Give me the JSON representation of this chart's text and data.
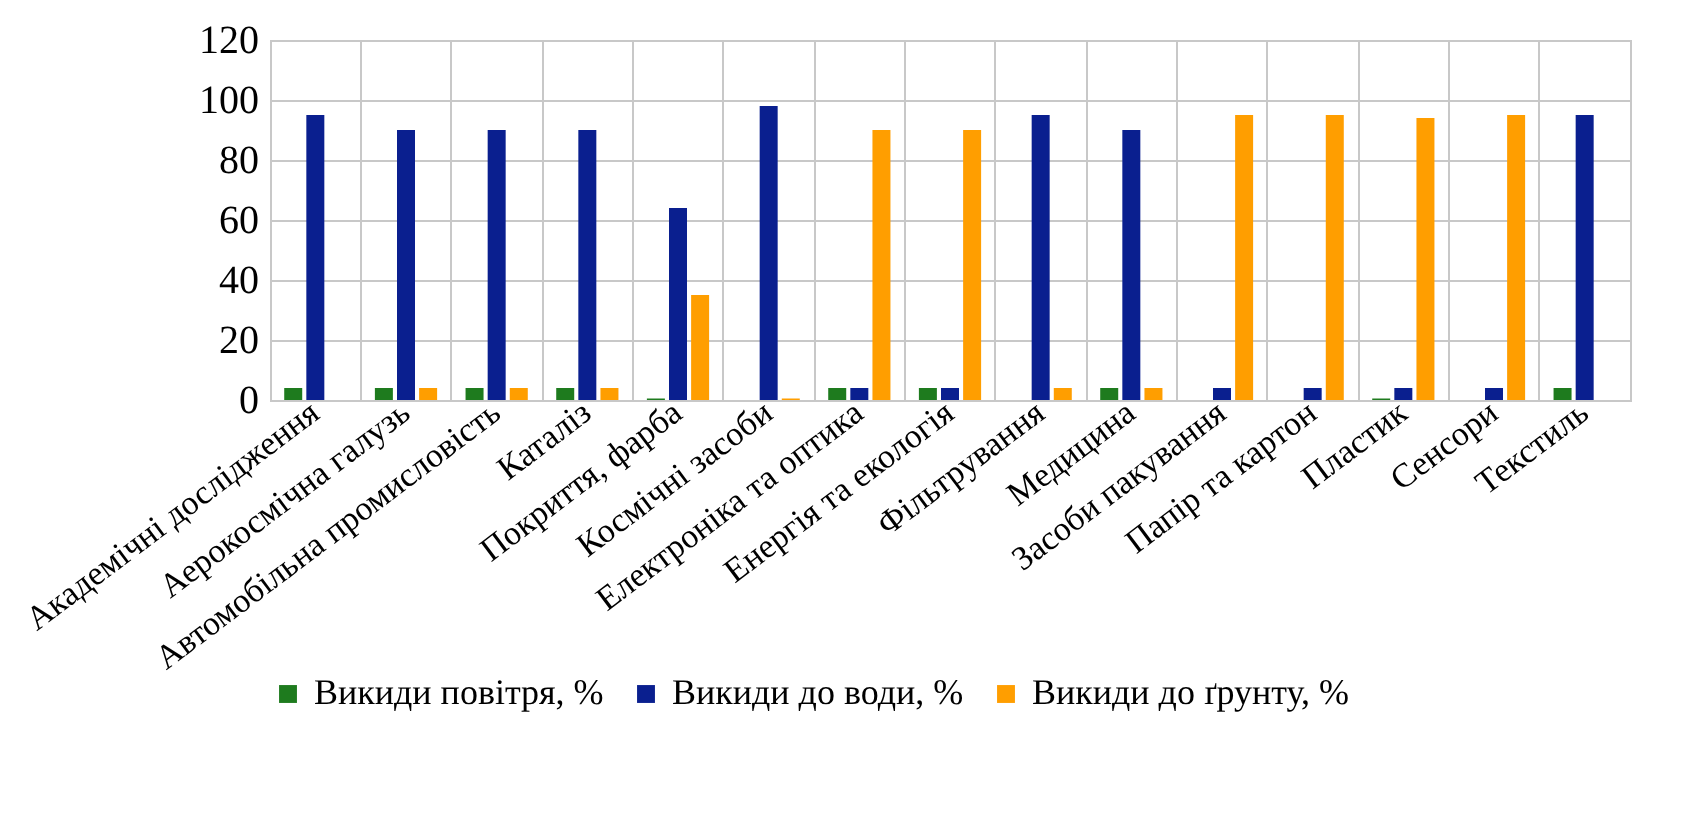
{
  "chart_data": {
    "type": "bar",
    "categories": [
      "Академічні дослідження",
      "Аерокосмічна галузь",
      "Автомобільна промисловість",
      "Каталіз",
      "Покриття, фарба",
      "Космічні засоби",
      "Електроніка та оптика",
      "Енергія та екологія",
      "Фільтрування",
      "Медицина",
      "Засоби пакування",
      "Папір та картон",
      "Пластик",
      "Сенсори",
      "Текстиль"
    ],
    "series": [
      {
        "name": "Викиди повітря, %",
        "color": "#1e7b1e",
        "values": [
          4,
          4,
          4,
          4,
          0.5,
          0,
          4,
          4,
          0,
          4,
          0,
          0,
          0.5,
          0,
          4
        ]
      },
      {
        "name": "Викиди до води, %",
        "color": "#0a1f8f",
        "values": [
          95,
          90,
          90,
          90,
          64,
          98,
          4,
          4,
          95,
          90,
          4,
          4,
          4,
          4,
          95
        ]
      },
      {
        "name": "Викиди до ґрунту, %",
        "color": "#ff9e00",
        "values": [
          0,
          4,
          4,
          4,
          35,
          0.5,
          90,
          90,
          4,
          4,
          95,
          95,
          94,
          95,
          0
        ]
      }
    ],
    "ylim": [
      0,
      120
    ],
    "yticks": [
      0,
      20,
      40,
      60,
      80,
      100,
      120
    ],
    "grid": true,
    "legend": "bottom"
  }
}
